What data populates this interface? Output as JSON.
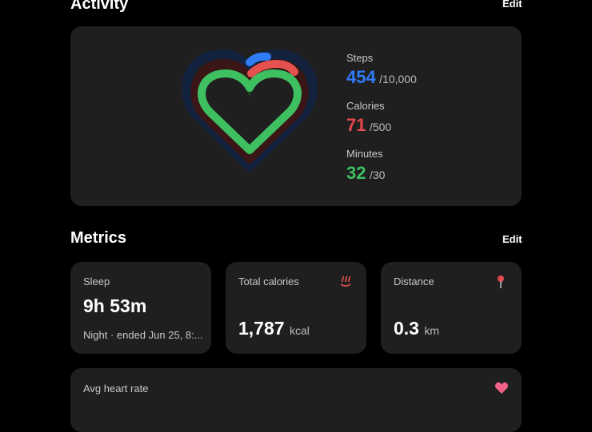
{
  "activity": {
    "title": "Activity",
    "edit": "Edit",
    "stats": [
      {
        "label": "Steps",
        "value": "454",
        "goal": "/10,000"
      },
      {
        "label": "Calories",
        "value": "71",
        "goal": "/500"
      },
      {
        "label": "Minutes",
        "value": "32",
        "goal": "/30"
      }
    ]
  },
  "metrics": {
    "title": "Metrics",
    "edit": "Edit",
    "cards": [
      {
        "label": "Sleep",
        "value": "9h 53m",
        "note": "Night · ended Jun 25, 8:..."
      },
      {
        "label": "Total calories",
        "value": "1,787",
        "unit": "kcal"
      },
      {
        "label": "Distance",
        "value": "0.3",
        "unit": "km"
      },
      {
        "label": "Avg heart rate"
      }
    ]
  }
}
